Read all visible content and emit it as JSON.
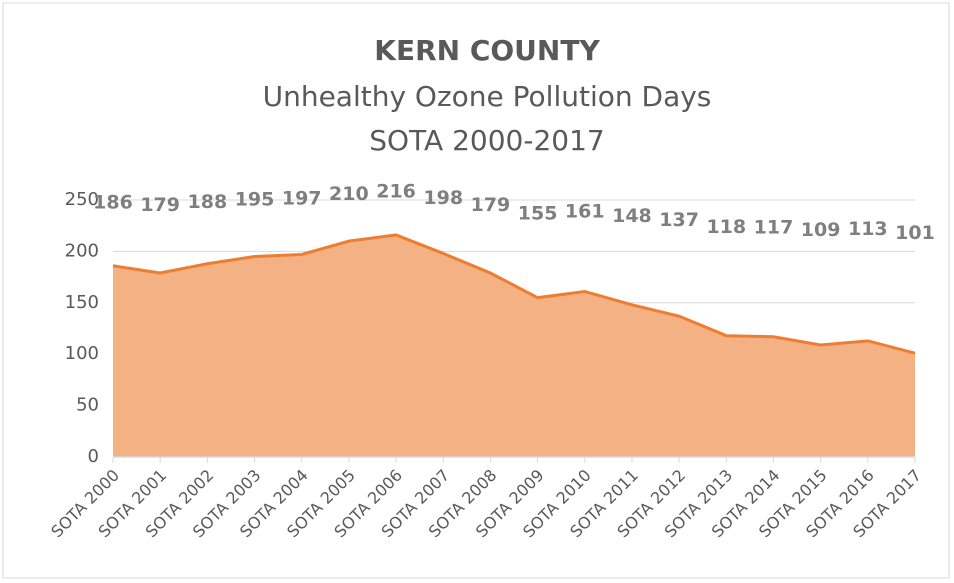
{
  "chart_data": {
    "type": "area",
    "title": "KERN COUNTY",
    "subtitle": [
      "Unhealthy Ozone Pollution Days",
      "SOTA 2000-2017"
    ],
    "categories": [
      "SOTA 2000",
      "SOTA 2001",
      "SOTA 2002",
      "SOTA 2003",
      "SOTA 2004",
      "SOTA 2005",
      "SOTA 2006",
      "SOTA 2007",
      "SOTA 2008",
      "SOTA 2009",
      "SOTA 2010",
      "SOTA 2011",
      "SOTA 2012",
      "SOTA 2013",
      "SOTA 2014",
      "SOTA 2015",
      "SOTA 2016",
      "SOTA 2017"
    ],
    "values": [
      186,
      179,
      188,
      195,
      197,
      210,
      216,
      198,
      179,
      155,
      161,
      148,
      137,
      118,
      117,
      109,
      113,
      101
    ],
    "color": "#f4b183",
    "line_color": "#ed7d31",
    "ylim": [
      0,
      250
    ],
    "yticks": [
      0,
      50,
      100,
      150,
      200,
      250
    ],
    "grid": true
  }
}
